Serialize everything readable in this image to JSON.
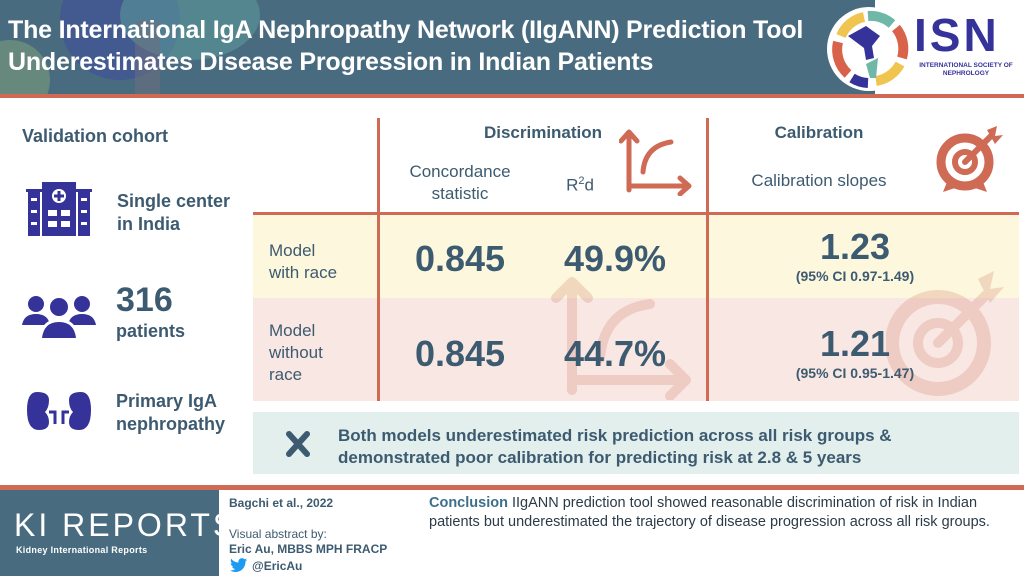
{
  "header": {
    "title": "The International IgA Nephropathy Network (IIgANN) Prediction Tool Underestimates Disease Progression in Indian Patients",
    "logo_text": "ISN",
    "logo_subtitle": "INTERNATIONAL SOCIETY OF NEPHROLOGY"
  },
  "cohort": {
    "heading": "Validation cohort",
    "items": [
      {
        "icon": "hospital-icon",
        "line1": "Single center",
        "line2": "in India"
      },
      {
        "icon": "patients-icon",
        "number": "316",
        "line2": "patients"
      },
      {
        "icon": "kidney-icon",
        "line1": "Primary IgA",
        "line2": "nephropathy"
      }
    ]
  },
  "table": {
    "discrimination": {
      "heading": "Discrimination",
      "col1": [
        "Concordance",
        "statistic"
      ],
      "col2_base": "R",
      "col2_sup": "2",
      "col2_tail": "d"
    },
    "calibration": {
      "heading": "Calibration",
      "col": "Calibration slopes"
    },
    "rows": [
      {
        "label": [
          "Model",
          "with race"
        ],
        "concordance": "0.845",
        "r2d": "49.9%",
        "slope": "1.23",
        "ci": "(95% CI 0.97-1.49)"
      },
      {
        "label": [
          "Model",
          "without",
          "race"
        ],
        "concordance": "0.845",
        "r2d": "44.7%",
        "slope": "1.21",
        "ci": "(95% CI 0.95-1.47)"
      }
    ],
    "colors": {
      "accent": "#cf6a55",
      "row1_bg": "#fcf7dd",
      "row2_bg": "#f8e7e3"
    }
  },
  "note": {
    "icon": "x-icon",
    "text": "Both models underestimated risk prediction across all risk groups & demonstrated poor calibration for predicting risk at 2.8 & 5 years"
  },
  "footer": {
    "journal_logo": "KI REPORTS",
    "journal_name": "Kidney International Reports",
    "citation": "Bagchi et al., 2022",
    "by_label": "Visual abstract by:",
    "author": "Eric Au, MBBS MPH FRACP",
    "twitter": "@EricAu",
    "conclusion_lead": "Conclusion",
    "conclusion_text": " IIgANN prediction tool showed reasonable discrimination of risk in Indian patients but underestimated the trajectory of disease progression across all risk groups."
  }
}
